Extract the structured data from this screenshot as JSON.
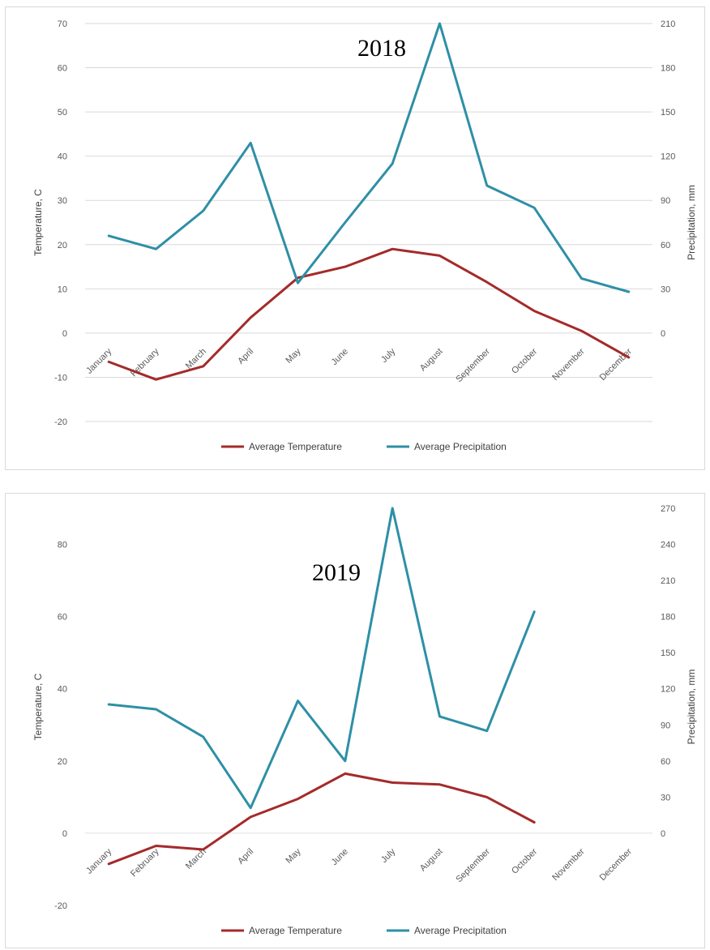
{
  "chart_data": [
    {
      "type": "line",
      "title": "2018",
      "categories": [
        "January",
        "February",
        "March",
        "April",
        "May",
        "June",
        "July",
        "August",
        "September",
        "October",
        "November",
        "December"
      ],
      "ylabel": "Temperature, C",
      "y2label": "Precipitation, mm",
      "ylim": [
        -20,
        70
      ],
      "yticks": [
        -20,
        -10,
        0,
        10,
        20,
        30,
        40,
        50,
        60,
        70
      ],
      "y2lim": [
        -60,
        210
      ],
      "y2ticks": [
        0,
        30,
        60,
        90,
        120,
        150,
        180,
        210
      ],
      "grid": true,
      "legend_position": "bottom",
      "series": [
        {
          "name": "Average Temperature",
          "axis": "left",
          "color": "#a52a2a",
          "values": [
            -6.5,
            -10.5,
            -7.5,
            3.5,
            12.5,
            15,
            19,
            17.5,
            11.5,
            5,
            0.5,
            -5.5
          ]
        },
        {
          "name": "Average Precipitation",
          "axis": "right",
          "color": "#2e8fa6",
          "values": [
            66,
            57,
            83,
            129,
            34,
            75,
            115,
            210,
            100,
            85,
            37,
            28
          ]
        }
      ]
    },
    {
      "type": "line",
      "title": "2019",
      "categories": [
        "January",
        "February",
        "March",
        "April",
        "May",
        "June",
        "July",
        "August",
        "September",
        "October",
        "November",
        "December"
      ],
      "ylabel": "Temperature, C",
      "y2label": "Precipitation, mm",
      "ylim": [
        -20,
        90
      ],
      "yticks": [
        -20,
        0,
        20,
        40,
        60,
        80
      ],
      "y2lim": [
        -60,
        270
      ],
      "y2ticks": [
        0,
        30,
        60,
        90,
        120,
        150,
        180,
        210,
        240,
        270
      ],
      "grid": false,
      "legend_position": "bottom",
      "series": [
        {
          "name": "Average Temperature",
          "axis": "left",
          "color": "#a52a2a",
          "values": [
            -8.5,
            -3.5,
            -4.5,
            4.5,
            9.5,
            16.5,
            14,
            13.5,
            10,
            3,
            null,
            null
          ]
        },
        {
          "name": "Average Precipitation",
          "axis": "right",
          "color": "#2e8fa6",
          "values": [
            107,
            103,
            80,
            21,
            110,
            60,
            270,
            97,
            85,
            184,
            null,
            null
          ]
        }
      ]
    }
  ]
}
